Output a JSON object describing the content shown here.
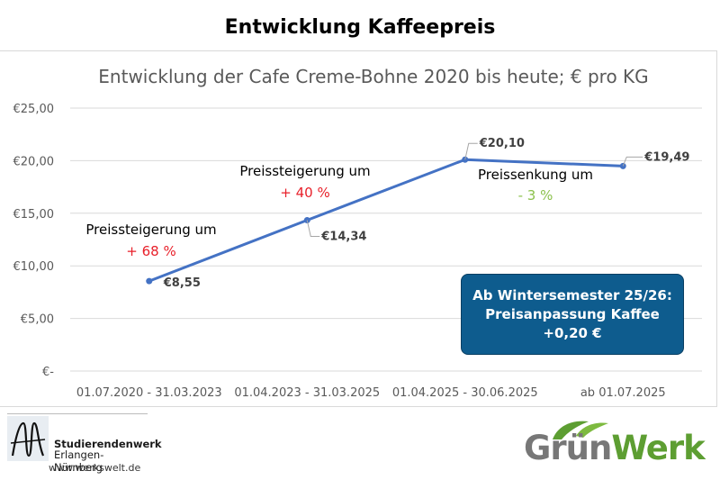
{
  "page": {
    "title": "Entwicklung Kaffeepreis"
  },
  "chart_data": {
    "type": "line",
    "title": "Entwicklung der Cafe Creme-Bohne 2020 bis heute; € pro KG",
    "categories": [
      "01.07.2020 - 31.03.2023",
      "01.04.2023 - 31.03.2025",
      "01.04.2025 - 30.06.2025",
      "ab 01.07.2025"
    ],
    "series": [
      {
        "values": [
          8.55,
          14.34,
          20.1,
          19.49
        ]
      }
    ],
    "data_labels": [
      "€8,55",
      "€14,34",
      "€20,10",
      "€19,49"
    ],
    "ylim": [
      0,
      25
    ],
    "y_ticks": [
      0,
      5,
      10,
      15,
      20,
      25
    ],
    "y_tick_labels": [
      "€-",
      "€5,00",
      "€10,00",
      "€15,00",
      "€20,00",
      "€25,00"
    ],
    "grid": true,
    "line_color": "#4472c4",
    "annotations": [
      {
        "text": "Preissteigerung um",
        "change": "+ 68 %",
        "change_color": "#e8202a"
      },
      {
        "text": "Preissteigerung um",
        "change": "+ 40 %",
        "change_color": "#e8202a"
      },
      {
        "text": "Preissenkung um",
        "change": "- 3 %",
        "change_color": "#8cc14c"
      }
    ]
  },
  "callout": {
    "line1": "Ab Wintersemester 25/26:",
    "line2": "Preisanpassung Kaffee",
    "line3": "+0,20 €",
    "background": "#0e5c8e"
  },
  "logos": {
    "studierendenwerk": {
      "name": "Studierendenwerk",
      "city": "Erlangen-Nürnberg",
      "url": "www.werkswelt.de"
    },
    "gruenwerk": {
      "part1": "Grün",
      "part2": "Werk",
      "leaf_color": "#5d9e32"
    }
  }
}
